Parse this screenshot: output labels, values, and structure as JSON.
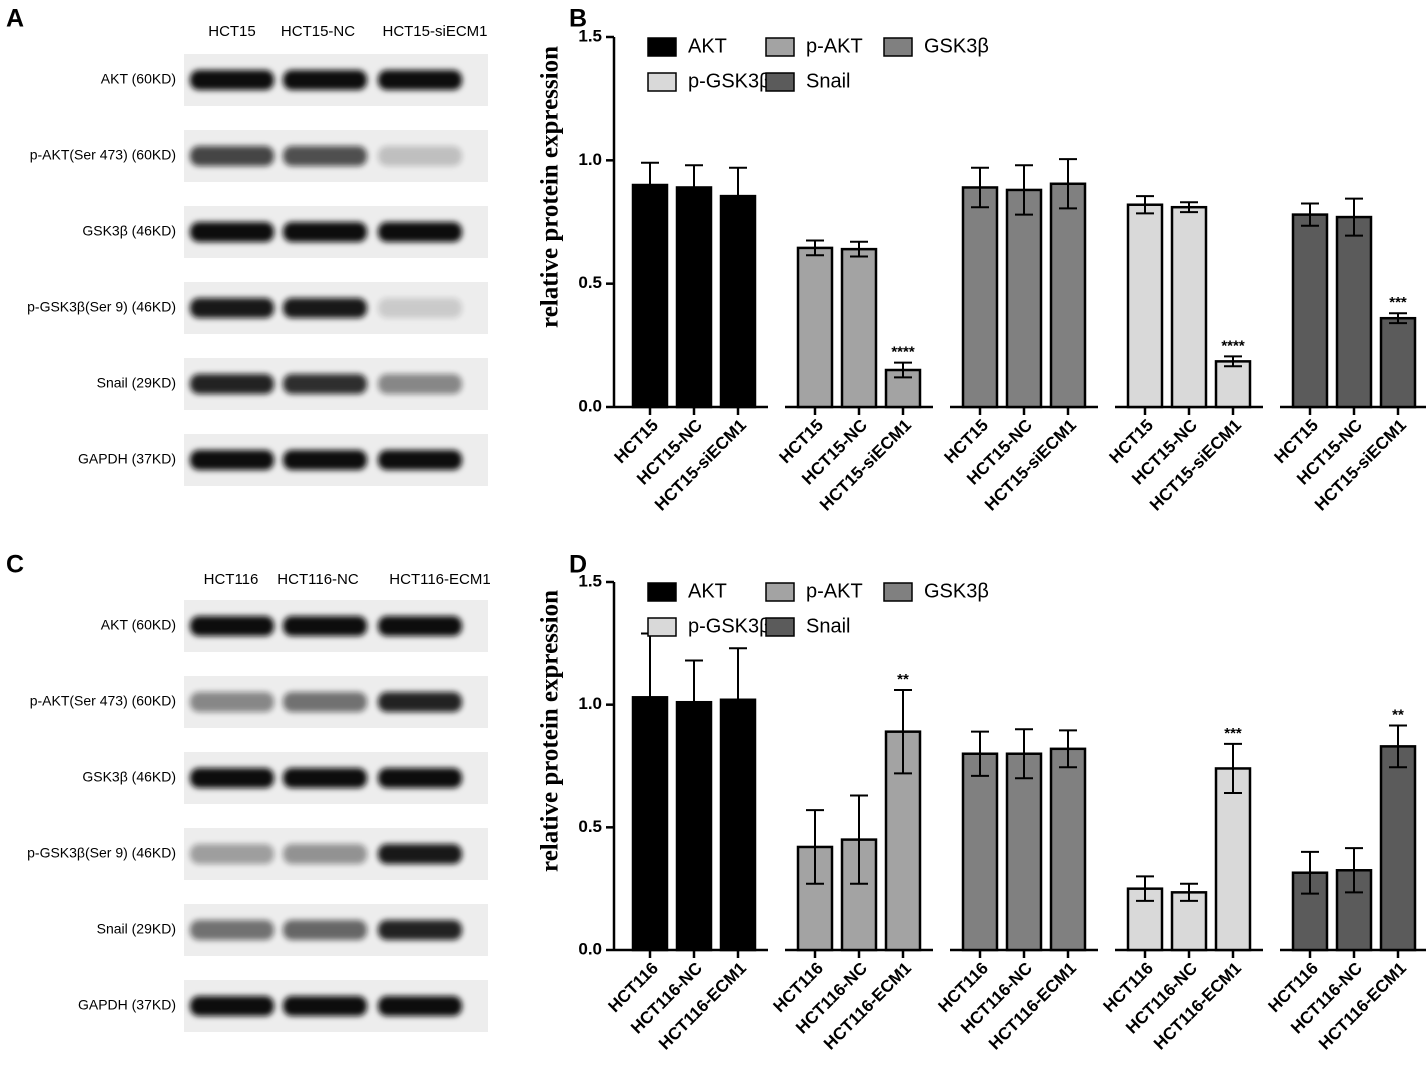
{
  "blots": [
    {
      "label": "A",
      "lanes": [
        "HCT15",
        "HCT15-NC",
        "HCT15-siECM1"
      ],
      "rows": [
        "AKT (60KD)",
        "p-AKT(Ser 473) (60KD)",
        "GSK3β (46KD)",
        "p-GSK3β(Ser 9) (46KD)",
        "Snail (29KD)",
        "GAPDH (37KD)"
      ]
    },
    {
      "label": "C",
      "lanes": [
        "HCT116",
        "HCT116-NC",
        "HCT116-ECM1"
      ],
      "rows": [
        "AKT (60KD)",
        "p-AKT(Ser 473) (60KD)",
        "GSK3β (46KD)",
        "p-GSK3β(Ser 9) (46KD)",
        "Snail (29KD)",
        "GAPDH (37KD)"
      ]
    }
  ],
  "chart_data": [
    {
      "type": "bar",
      "label": "B",
      "ylabel": "relative protein expression",
      "categories": [
        "HCT15",
        "HCT15-NC",
        "HCT15-siECM1"
      ],
      "ylim": [
        0,
        1.5
      ],
      "yticks": [
        {
          "value": 0,
          "label": "0.0"
        },
        0.5,
        {
          "value": 1,
          "label": "1.0"
        },
        1.5
      ],
      "series": [
        {
          "name": "AKT",
          "color": "#000000",
          "values": [
            0.9,
            0.89,
            0.855
          ],
          "errors": [
            0.09,
            0.09,
            0.115
          ],
          "labels": [
            null,
            null,
            null
          ]
        },
        {
          "name": "p-AKT",
          "color": "#a3a3a3",
          "values": [
            0.645,
            0.64,
            0.15
          ],
          "errors": [
            0.03,
            0.03,
            0.03
          ],
          "labels": [
            null,
            null,
            "****"
          ]
        },
        {
          "name": "GSK3β",
          "color": "#808080",
          "values": [
            0.89,
            0.88,
            0.905
          ],
          "errors": [
            0.08,
            0.1,
            0.1
          ],
          "labels": [
            null,
            null,
            null
          ]
        },
        {
          "name": "p-GSK3β",
          "color": "#d9d9d9",
          "values": [
            0.82,
            0.81,
            0.185
          ],
          "errors": [
            0.035,
            0.02,
            0.02
          ],
          "labels": [
            null,
            null,
            "****"
          ]
        },
        {
          "name": "Snail",
          "color": "#5b5b5b",
          "values": [
            0.78,
            0.77,
            0.36
          ],
          "errors": [
            0.045,
            0.075,
            0.02
          ],
          "labels": [
            null,
            null,
            "***"
          ]
        }
      ]
    },
    {
      "type": "bar",
      "label": "D",
      "ylabel": "relative protein expression",
      "categories": [
        "HCT116",
        "HCT116-NC",
        "HCT116-ECM1"
      ],
      "ylim": [
        0,
        1.5
      ],
      "yticks": [
        {
          "value": 0,
          "label": "0.0"
        },
        0.5,
        {
          "value": 1,
          "label": "1.0"
        },
        1.5
      ],
      "series": [
        {
          "name": "AKT",
          "color": "#000000",
          "values": [
            1.03,
            1.01,
            1.02
          ],
          "errors": [
            0.26,
            0.17,
            0.21
          ],
          "labels": [
            null,
            null,
            null
          ]
        },
        {
          "name": "p-AKT",
          "color": "#a3a3a3",
          "values": [
            0.42,
            0.45,
            0.89
          ],
          "errors": [
            0.15,
            0.18,
            0.17
          ],
          "labels": [
            null,
            null,
            "**"
          ]
        },
        {
          "name": "GSK3β",
          "color": "#808080",
          "values": [
            0.8,
            0.8,
            0.82
          ],
          "errors": [
            0.09,
            0.1,
            0.075
          ],
          "labels": [
            null,
            null,
            null
          ]
        },
        {
          "name": "p-GSK3β",
          "color": "#d9d9d9",
          "values": [
            0.25,
            0.235,
            0.74
          ],
          "errors": [
            0.05,
            0.035,
            0.1
          ],
          "labels": [
            null,
            null,
            "***"
          ]
        },
        {
          "name": "Snail",
          "color": "#5b5b5b",
          "values": [
            0.315,
            0.325,
            0.83
          ],
          "errors": [
            0.085,
            0.09,
            0.085
          ],
          "labels": [
            null,
            null,
            "**"
          ]
        }
      ]
    }
  ]
}
